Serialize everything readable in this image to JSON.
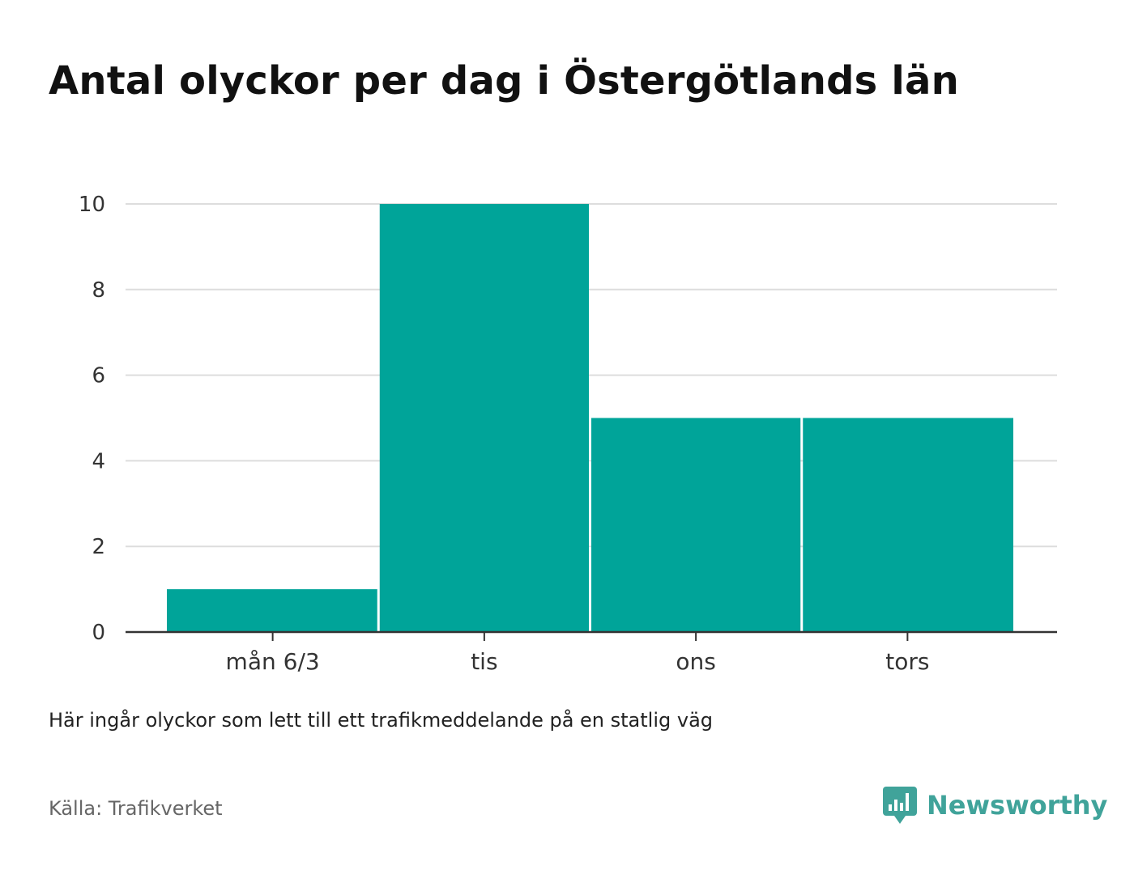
{
  "title": "Antal olyckor per dag i Östergötlands län",
  "note": "Här ingår olyckor som lett till ett trafikmeddelande på en statlig väg",
  "source": "Källa: Trafikverket",
  "brand": {
    "name": "Newsworthy",
    "logo_icon": "bar-chart-speech-bubble-icon",
    "color": "#40a39a"
  },
  "colors": {
    "bar": "#00a499",
    "grid": "#dddddd",
    "axis": "#333333"
  },
  "chart_data": {
    "type": "bar",
    "categories": [
      "mån 6/3",
      "tis",
      "ons",
      "tors"
    ],
    "values": [
      1,
      10,
      5,
      5
    ],
    "title": "Antal olyckor per dag i Östergötlands län",
    "xlabel": "",
    "ylabel": "",
    "ylim": [
      0,
      10
    ],
    "yticks": [
      0,
      2,
      4,
      6,
      8,
      10
    ],
    "grid": true,
    "legend": "none"
  }
}
